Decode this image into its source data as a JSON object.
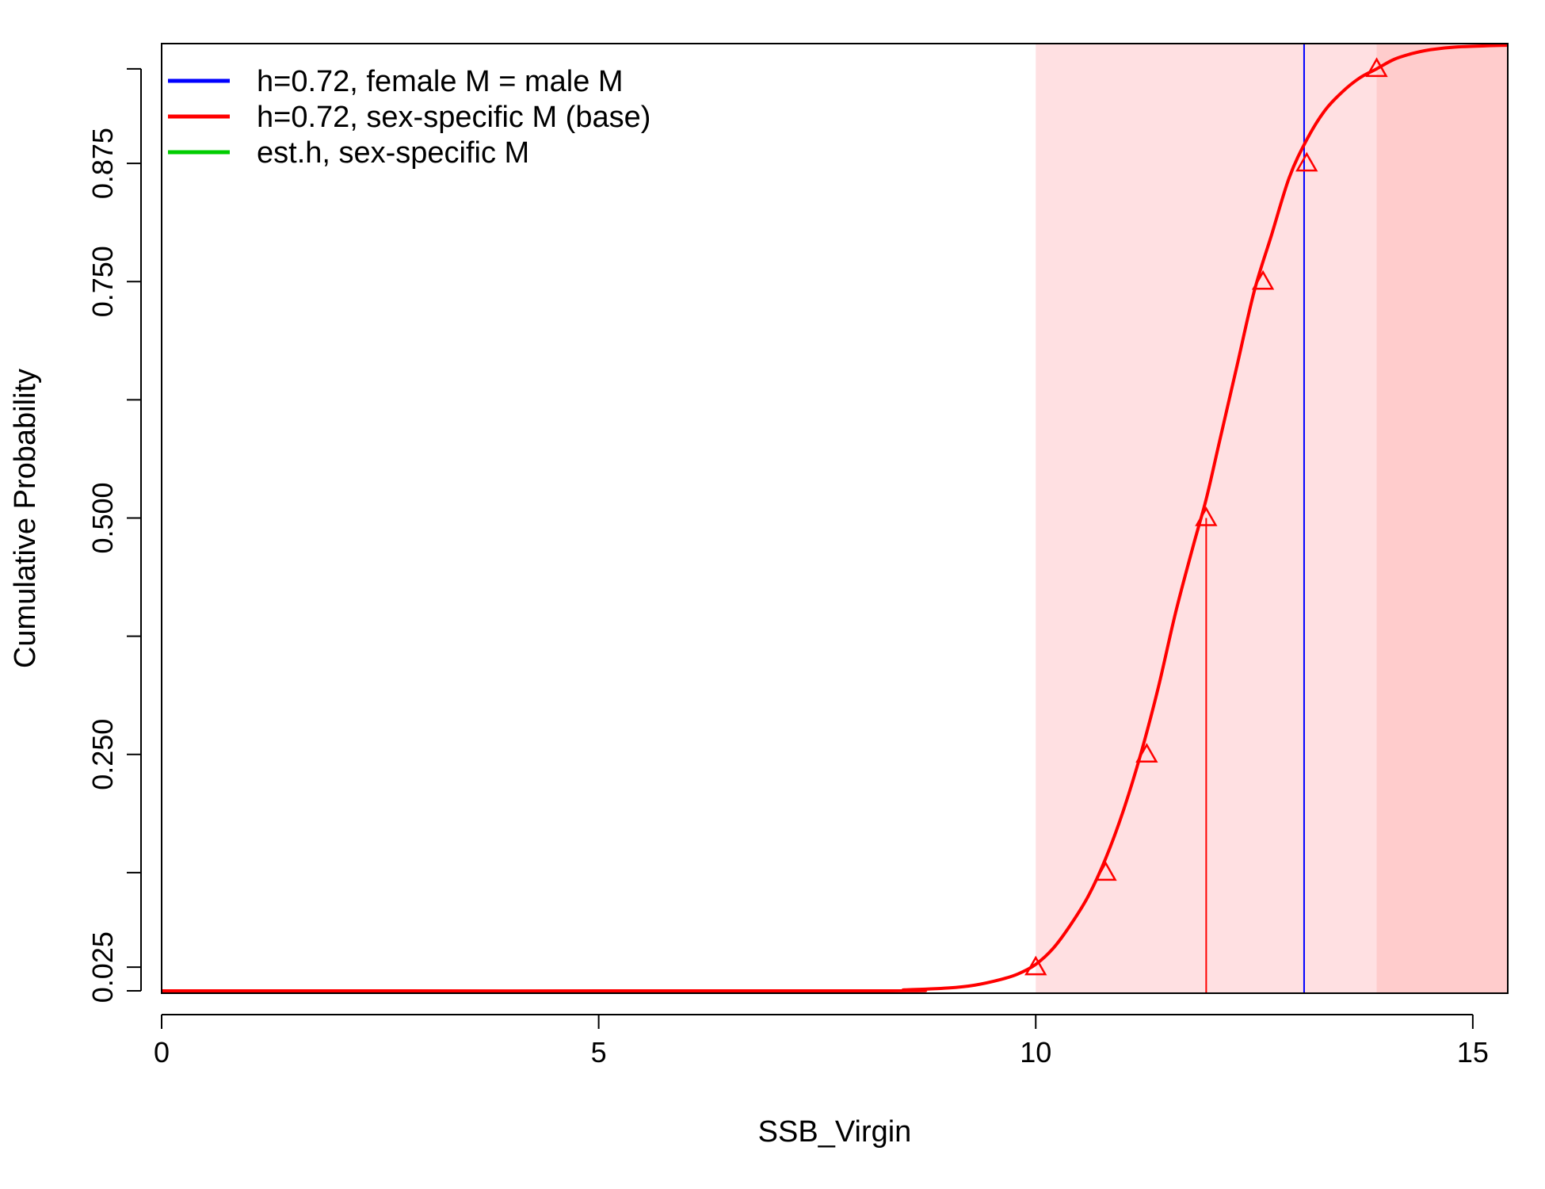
{
  "chart_data": {
    "type": "line",
    "title": "",
    "xlabel": "SSB_Virgin",
    "ylabel": "Cumulative Probability",
    "xlim": [
      0,
      15.4
    ],
    "ylim": [
      0.0,
      1.0
    ],
    "x_ticks": [
      0,
      5,
      10,
      15
    ],
    "x_tick_labels": [
      "0",
      "5",
      "10",
      "15"
    ],
    "y_ticks": [
      0.0,
      0.025,
      0.125,
      0.25,
      0.375,
      0.5,
      0.625,
      0.75,
      0.875,
      0.975
    ],
    "y_tick_labels": [
      "",
      "0.025",
      "",
      "0.250",
      "",
      "0.500",
      "",
      "0.750",
      "0.875",
      ""
    ],
    "grid": false,
    "legend_position": "top-left",
    "series": [
      {
        "name": "h=0.72, female M = male M",
        "color": "#0000ff",
        "kind": "vertical-line",
        "x": 13.07
      },
      {
        "name": "h=0.72, sex-specific M (base)",
        "color": "#ff0000",
        "kind": "cdf",
        "x": [
          0,
          8.0,
          8.5,
          9.0,
          9.3,
          9.6,
          9.8,
          10.0,
          10.2,
          10.4,
          10.6,
          10.8,
          11.0,
          11.2,
          11.4,
          11.6,
          11.8,
          11.95,
          12.1,
          12.3,
          12.5,
          12.7,
          12.9,
          13.1,
          13.3,
          13.5,
          13.7,
          13.9,
          14.1,
          14.3,
          14.5,
          14.8,
          15.4
        ],
        "y": [
          0.0,
          0.0,
          0.001,
          0.003,
          0.006,
          0.012,
          0.018,
          0.028,
          0.045,
          0.07,
          0.1,
          0.14,
          0.19,
          0.25,
          0.32,
          0.4,
          0.47,
          0.52,
          0.58,
          0.66,
          0.74,
          0.8,
          0.86,
          0.9,
          0.93,
          0.95,
          0.965,
          0.975,
          0.985,
          0.991,
          0.995,
          0.998,
          1.0
        ],
        "quantile_x": [
          10.0,
          10.8,
          11.27,
          11.95,
          12.6,
          13.1,
          13.9
        ],
        "quantile_y": [
          0.025,
          0.125,
          0.25,
          0.5,
          0.75,
          0.875,
          0.975
        ],
        "median_x": 11.95,
        "ci95": [
          10.0,
          13.9
        ]
      },
      {
        "name": "est.h, sex-specific M",
        "color": "#00cd00",
        "kind": "legend-only"
      }
    ]
  }
}
